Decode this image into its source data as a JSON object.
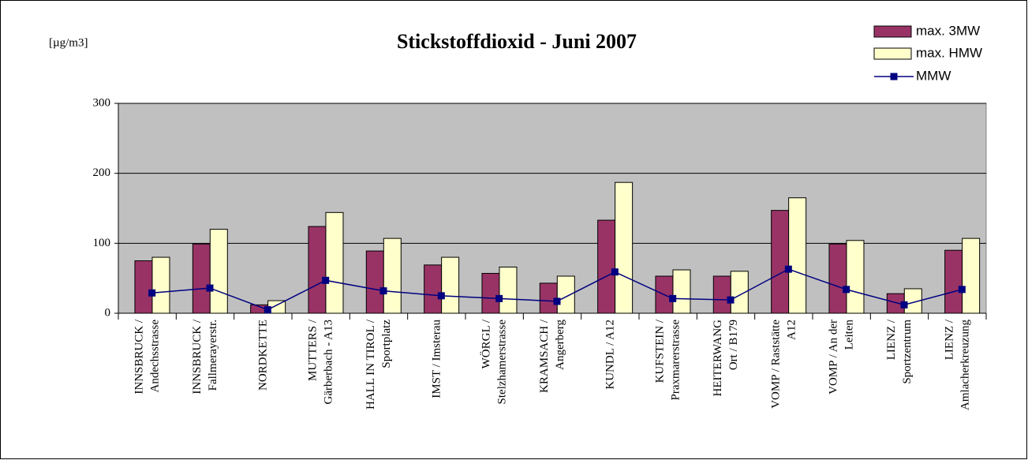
{
  "chart_data": {
    "type": "bar_line",
    "title": "Stickstoffdioxid - Juni 2007",
    "y_label": "[µg/m3]",
    "categories": [
      "INNSBRUCK /\nAndechsstrasse",
      "INNSBRUCK /\nFallmerayerstr.",
      "NORDKETTE",
      "MUTTERS /\nGärberbach - A13",
      "HALL IN TIROL /\nSportplatz",
      "IMST / Imsterau",
      "WÖRGL /\nStelzhamerstrasse",
      "KRAMSACH /\nAngerberg",
      "KUNDL / A12",
      "KUFSTEIN /\nPraxmarerstrasse",
      "HEITERWANG\nOrt / B179",
      "VOMP / Raststätte\nA12",
      "VOMP / An der\nLeiten",
      "LIENZ /\nSportzentrum",
      "LIENZ /\nAmlacherkreuzung"
    ],
    "series": [
      {
        "name": "max. 3MW",
        "type": "bar",
        "color": "#993366",
        "values": [
          75,
          99,
          12,
          124,
          89,
          69,
          57,
          43,
          133,
          53,
          53,
          147,
          99,
          28,
          90
        ]
      },
      {
        "name": "max. HMW",
        "type": "bar",
        "color": "#ffffcc",
        "values": [
          80,
          120,
          18,
          144,
          107,
          80,
          66,
          53,
          187,
          62,
          60,
          165,
          104,
          35,
          107
        ]
      },
      {
        "name": "MMW",
        "type": "line",
        "color": "#000080",
        "values": [
          29,
          36,
          5,
          47,
          32,
          25,
          21,
          17,
          59,
          21,
          19,
          63,
          34,
          12,
          34
        ]
      }
    ],
    "ylim": [
      0,
      300
    ],
    "yticks": [
      0,
      100,
      200,
      300
    ],
    "grid": true,
    "legend": "top-right"
  }
}
